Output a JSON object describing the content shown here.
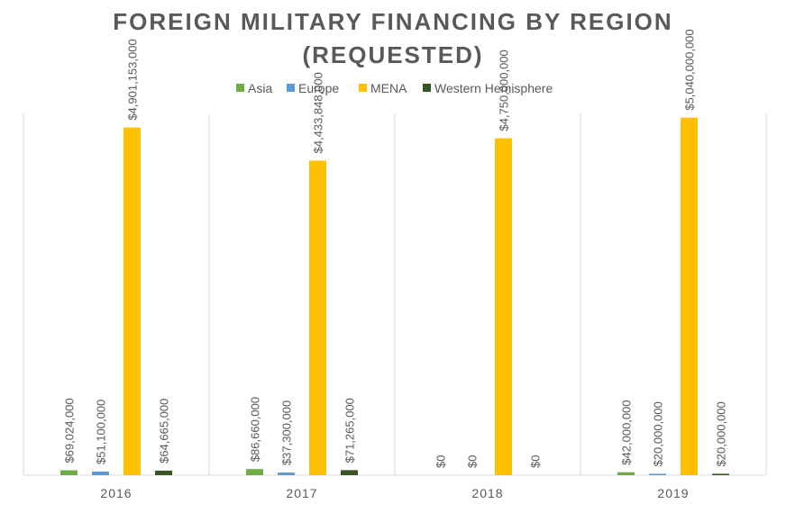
{
  "chart_data": {
    "type": "bar",
    "title": [
      "FOREIGN MILITARY FINANCING BY REGION",
      "(REQUESTED)"
    ],
    "xlabel": "",
    "ylabel": "",
    "ylim": [
      0,
      5100000000
    ],
    "grid": false,
    "legend_position": "top",
    "categories": [
      "2016",
      "2017",
      "2018",
      "2019"
    ],
    "series": [
      {
        "name": "Asia",
        "color": "#70AD47",
        "values": [
          69024000,
          86660000,
          0,
          42000000
        ],
        "labels": [
          "$69,024,000",
          "$86,660,000",
          "$0",
          "$42,000,000"
        ]
      },
      {
        "name": "Europe",
        "color": "#5B9BD5",
        "values": [
          51100000,
          37300000,
          0,
          20000000
        ],
        "labels": [
          "$51,100,000",
          "$37,300,000",
          "$0",
          "$20,000,000"
        ]
      },
      {
        "name": "MENA",
        "color": "#FFC000",
        "values": [
          4901153000,
          4433848000,
          4750000000,
          5040000000
        ],
        "labels": [
          "$4,901,153,000",
          "$4,433,848,000",
          "$4,750,000,000",
          "$5,040,000,000"
        ]
      },
      {
        "name": "Western Hemisphere",
        "color": "#375623",
        "values": [
          64665000,
          71265000,
          0,
          20000000
        ],
        "labels": [
          "$64,665,000",
          "$71,265,000",
          "$0",
          "$20,000,000"
        ]
      }
    ]
  }
}
